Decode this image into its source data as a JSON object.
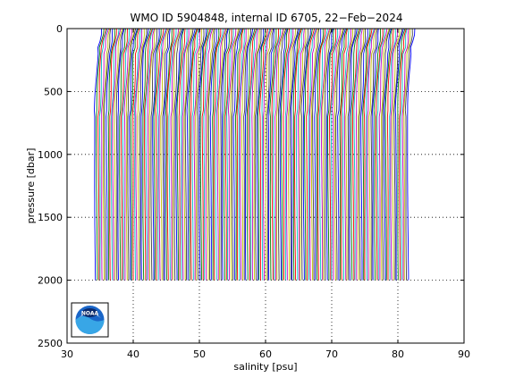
{
  "chart_data": {
    "type": "line",
    "title": "WMO ID 5904848, internal ID 6705, 22−Feb−2024",
    "xlabel": "salinity [psu]",
    "ylabel": "pressure [dbar]",
    "xlim": [
      30,
      90
    ],
    "ylim": [
      2500,
      0
    ],
    "y_reversed": true,
    "x_ticks": [
      "30",
      "40",
      "50",
      "60",
      "70",
      "80",
      "90"
    ],
    "y_ticks": [
      "0",
      "500",
      "1000",
      "1500",
      "2000",
      "2500"
    ],
    "grid": true,
    "grid_style": "dotted",
    "profiles": {
      "description": "stacked offset salinity profiles, one per cycle",
      "count": 190,
      "first_offset_psu": 34.3,
      "offset_step_psu": 0.25,
      "pressure_range_dbar": [
        0,
        2000
      ],
      "colors": [
        "#0000ff",
        "#008000",
        "#ff0000",
        "#00bfbf",
        "#bf00bf",
        "#bfbf00",
        "#404040"
      ]
    },
    "logo": "noaa-logo"
  }
}
